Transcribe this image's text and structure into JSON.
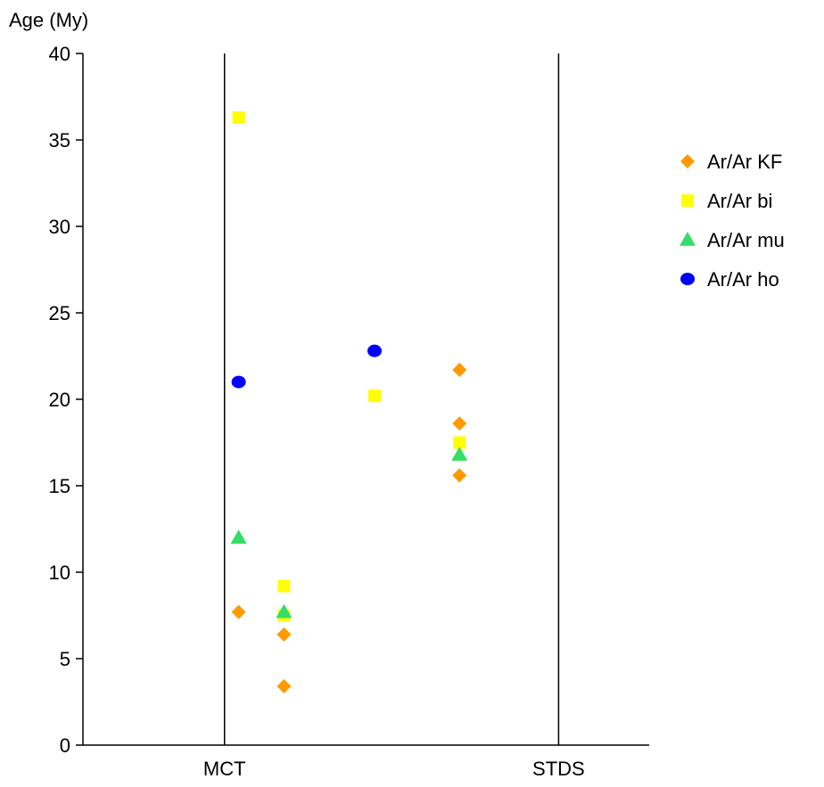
{
  "chart_data": {
    "type": "scatter",
    "ylabel": "Age (My)",
    "ylim": [
      0,
      40
    ],
    "yticks": [
      0,
      5,
      10,
      15,
      20,
      25,
      30,
      35,
      40
    ],
    "xlim": [
      0,
      100
    ],
    "grid": false,
    "legend_position": "right",
    "reference_lines": [
      {
        "label": "MCT",
        "x": 25
      },
      {
        "label": "STDS",
        "x": 84
      }
    ],
    "series": [
      {
        "name": "Ar/Ar KF",
        "marker": "diamond",
        "color": "#FF9900",
        "points": [
          {
            "x": 27.5,
            "y": 7.7
          },
          {
            "x": 35.5,
            "y": 6.4
          },
          {
            "x": 35.5,
            "y": 3.4
          },
          {
            "x": 66.5,
            "y": 21.7
          },
          {
            "x": 66.5,
            "y": 18.6
          },
          {
            "x": 66.5,
            "y": 15.6
          }
        ]
      },
      {
        "name": "Ar/Ar bi",
        "marker": "square",
        "color": "#FFFF00",
        "points": [
          {
            "x": 27.5,
            "y": 36.3
          },
          {
            "x": 35.5,
            "y": 9.2
          },
          {
            "x": 35.5,
            "y": 7.5
          },
          {
            "x": 51.5,
            "y": 20.2
          },
          {
            "x": 66.5,
            "y": 17.5
          }
        ]
      },
      {
        "name": "Ar/Ar mu",
        "marker": "triangle",
        "color": "#33DD66",
        "points": [
          {
            "x": 27.5,
            "y": 12.0
          },
          {
            "x": 35.5,
            "y": 7.7
          },
          {
            "x": 66.5,
            "y": 16.8
          }
        ]
      },
      {
        "name": "Ar/Ar ho",
        "marker": "circle",
        "color": "#0000FF",
        "points": [
          {
            "x": 27.5,
            "y": 21.0
          },
          {
            "x": 51.5,
            "y": 22.8
          }
        ]
      }
    ]
  }
}
